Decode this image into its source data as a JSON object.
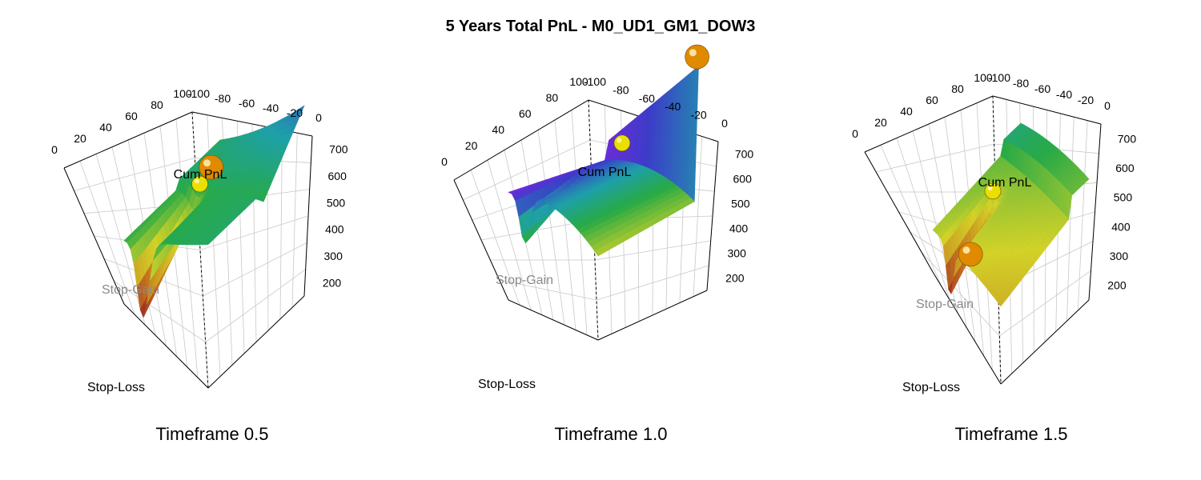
{
  "title": "5 Years Total PnL - M0_UD1_GM1_DOW3",
  "colors": {
    "sphere_max": "#e08a00",
    "sphere_alt": "#e8e000",
    "grid": "#c8c8c8",
    "axis": "#000000"
  },
  "chart_data": [
    {
      "type": "surface3d",
      "caption": "Timeframe 0.5",
      "zlabel": "Cum PnL",
      "xlabel": "Stop-Gain",
      "ylabel": "Stop-Loss",
      "stop_gain_ticks": [
        "0",
        "20",
        "40",
        "60",
        "80",
        "100"
      ],
      "stop_loss_ticks": [
        "-100",
        "-80",
        "-60",
        "-40",
        "-20",
        "0"
      ],
      "pnl_ticks": [
        "200",
        "300",
        "400",
        "500",
        "600",
        "700"
      ],
      "zlim": [
        150,
        750
      ],
      "grid": true,
      "surface_range": [
        170,
        590
      ],
      "max_point_pnl": 460,
      "alt_point_pnl": 520
    },
    {
      "type": "surface3d",
      "caption": "Timeframe 1.0",
      "zlabel": "Cum PnL",
      "xlabel": "Stop-Gain",
      "ylabel": "Stop-Loss",
      "stop_gain_ticks": [
        "0",
        "20",
        "40",
        "60",
        "80",
        "100"
      ],
      "stop_loss_ticks": [
        "-100",
        "-80",
        "-60",
        "-40",
        "-20",
        "0"
      ],
      "pnl_ticks": [
        "200",
        "300",
        "400",
        "500",
        "600",
        "700"
      ],
      "zlim": [
        150,
        750
      ],
      "grid": true,
      "surface_range": [
        170,
        740
      ],
      "max_point_pnl": 790,
      "alt_point_pnl": 740
    },
    {
      "type": "surface3d",
      "caption": "Timeframe 1.5",
      "zlabel": "Cum PnL",
      "xlabel": "Stop-Gain",
      "ylabel": "Stop-Loss",
      "stop_gain_ticks": [
        "0",
        "20",
        "40",
        "60",
        "80",
        "100"
      ],
      "stop_loss_ticks": [
        "-100",
        "-80",
        "-60",
        "-40",
        "-20",
        "0"
      ],
      "pnl_ticks": [
        "200",
        "300",
        "400",
        "500",
        "600",
        "700"
      ],
      "zlim": [
        150,
        750
      ],
      "grid": true,
      "surface_range": [
        170,
        440
      ],
      "max_point_pnl": 260,
      "alt_point_pnl": 400
    }
  ]
}
